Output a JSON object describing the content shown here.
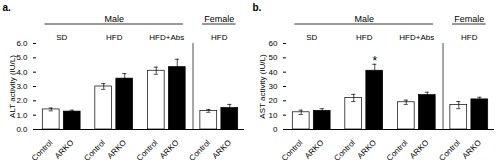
{
  "chart_data": [
    {
      "type": "bar",
      "title": "a.",
      "ylabel": "ALT activity (IU/L)",
      "categories": [
        "Control",
        "ARKO",
        "Control",
        "ARKO",
        "Control",
        "ARKO",
        "Control",
        "ARKO"
      ],
      "values": [
        1.4,
        1.25,
        3.0,
        3.55,
        4.1,
        4.35,
        1.3,
        1.5
      ],
      "errors": [
        0.1,
        0.1,
        0.2,
        0.35,
        0.25,
        0.55,
        0.1,
        0.25
      ],
      "colors": [
        "white",
        "black",
        "white",
        "black",
        "white",
        "black",
        "white",
        "black"
      ],
      "groups": [
        {
          "label": "SD",
          "section": "Male"
        },
        {
          "label": "HFD",
          "section": "Male"
        },
        {
          "label": "HFD+Abs",
          "section": "Male"
        },
        {
          "label": "HFD",
          "section": "Female"
        }
      ],
      "ylim": [
        0,
        6
      ],
      "yticks": [
        0,
        1,
        2,
        3,
        4,
        5,
        6
      ]
    },
    {
      "type": "bar",
      "title": "b.",
      "ylabel": "AST activity (IU/L)",
      "categories": [
        "Control",
        "ARKO",
        "Control",
        "ARKO",
        "Control",
        "ARKO",
        "Control",
        "ARKO"
      ],
      "values": [
        12.0,
        13.0,
        22.0,
        41.0,
        19.0,
        24.0,
        17.0,
        21.0
      ],
      "errors": [
        1.5,
        1.5,
        2.5,
        4.5,
        1.5,
        2.0,
        2.5,
        1.5
      ],
      "colors": [
        "white",
        "black",
        "white",
        "black",
        "white",
        "black",
        "white",
        "black"
      ],
      "groups": [
        {
          "label": "SD",
          "section": "Male"
        },
        {
          "label": "HFD",
          "section": "Male"
        },
        {
          "label": "HFD+Abs",
          "section": "Male"
        },
        {
          "label": "HFD",
          "section": "Female"
        }
      ],
      "annotations": [
        {
          "text": "*",
          "index": 3
        }
      ],
      "ylim": [
        0,
        60
      ],
      "yticks": [
        0,
        10,
        20,
        30,
        40,
        50,
        60
      ]
    }
  ]
}
